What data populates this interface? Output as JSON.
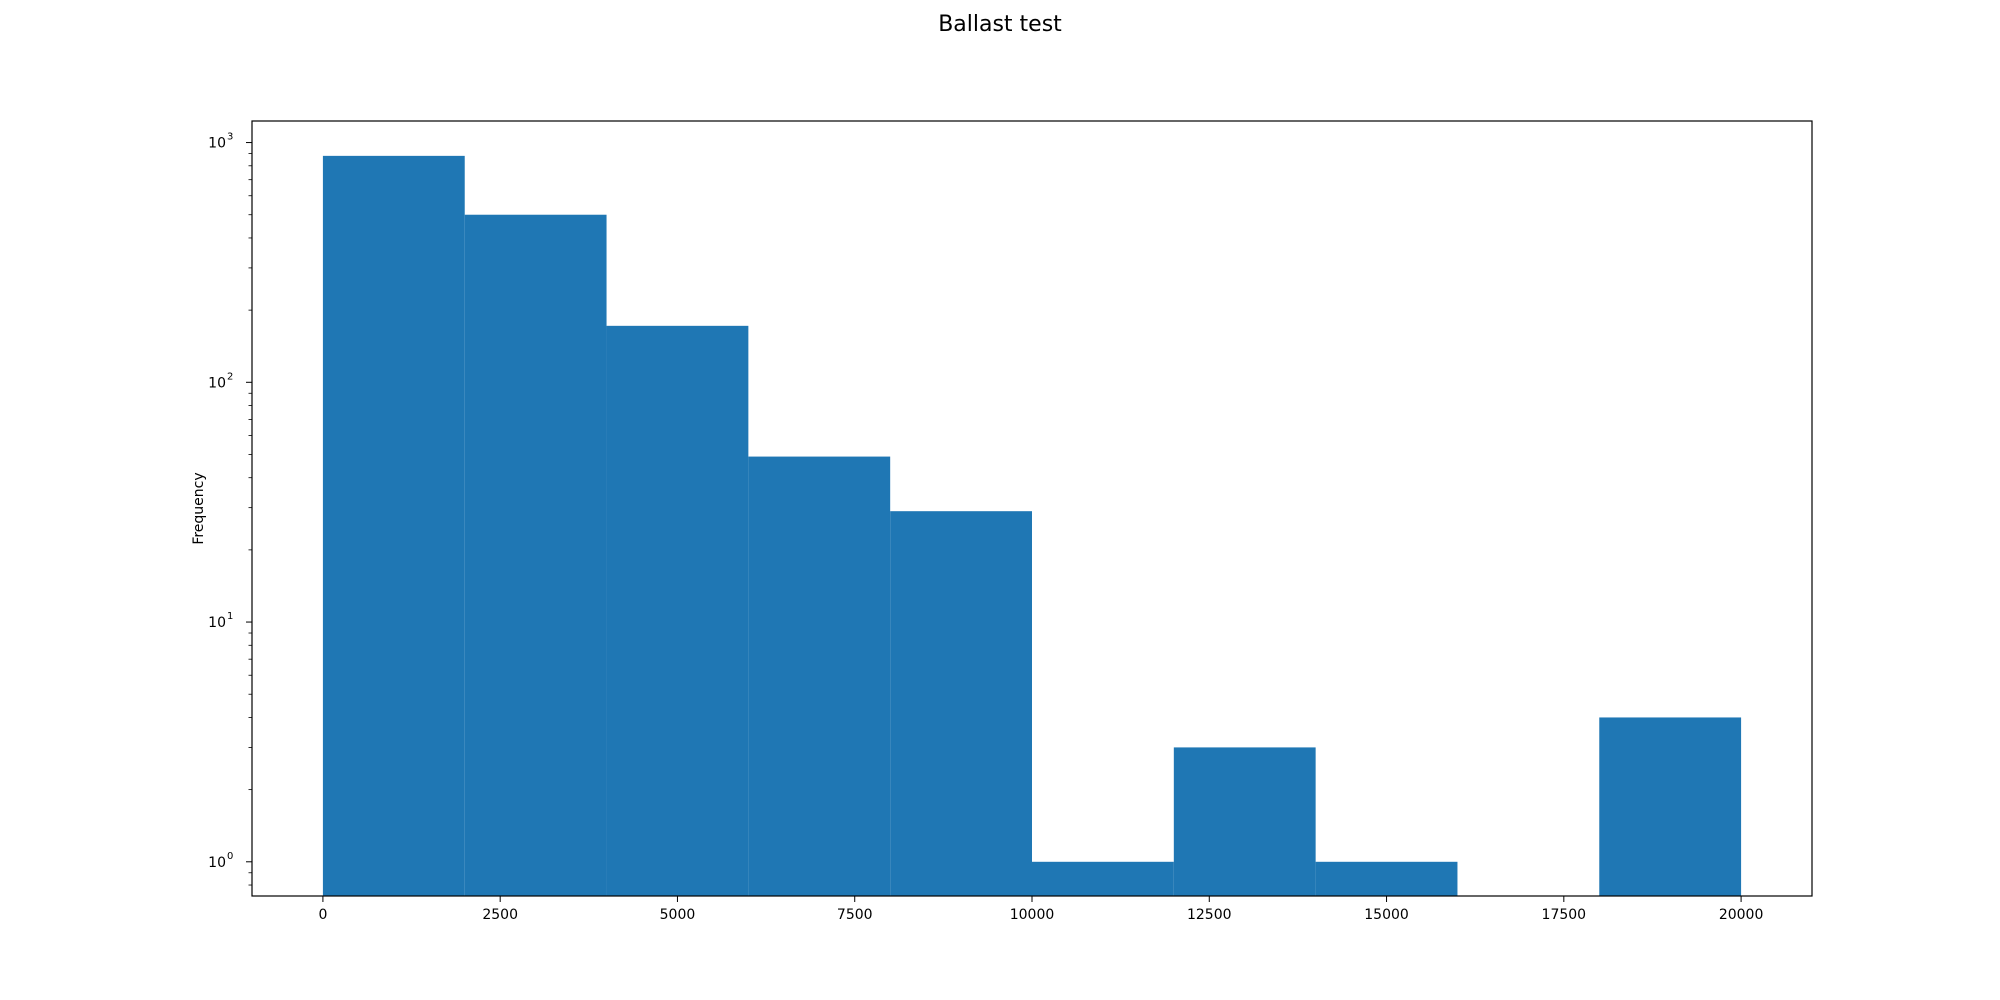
{
  "chart_data": {
    "type": "bar",
    "title": "Ballast test",
    "xlabel": "",
    "ylabel": "Frequency",
    "yscale": "log",
    "xlim": [
      -1000,
      21000
    ],
    "ylim": [
      0.72,
      1230
    ],
    "grid": false,
    "bin_edges": [
      0,
      2000,
      4000,
      6000,
      8000,
      10000,
      12000,
      14000,
      16000,
      18000,
      20000
    ],
    "values": [
      880,
      500,
      172,
      49,
      29,
      1,
      3,
      1,
      0,
      4
    ],
    "x_ticks": [
      0,
      2500,
      5000,
      7500,
      10000,
      12500,
      15000,
      17500,
      20000
    ],
    "x_tick_labels": [
      "0",
      "2500",
      "5000",
      "7500",
      "10000",
      "12500",
      "15000",
      "17500",
      "20000"
    ],
    "y_ticks": [
      {
        "value": 1,
        "base": "10",
        "exp": "0"
      },
      {
        "value": 10,
        "base": "10",
        "exp": "1"
      },
      {
        "value": 100,
        "base": "10",
        "exp": "2"
      },
      {
        "value": 1000,
        "base": "10",
        "exp": "3"
      }
    ],
    "bar_color": "#1f77b4"
  }
}
